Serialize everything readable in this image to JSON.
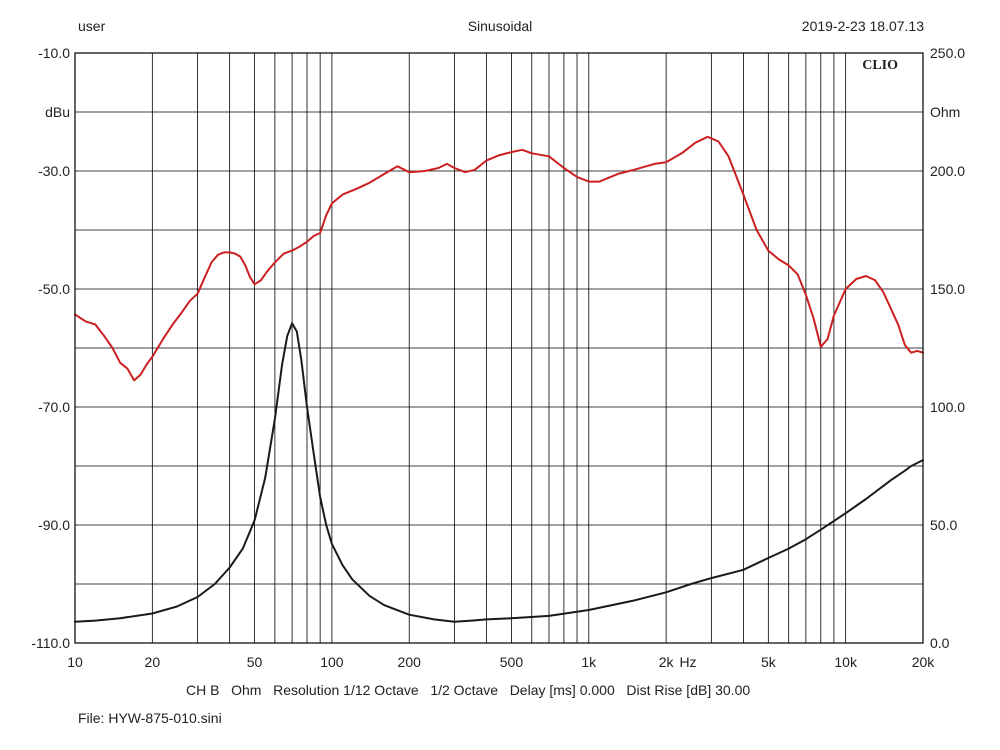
{
  "header": {
    "left": "user",
    "center": "Sinusoidal",
    "right": "2019-2-23 18.07.13"
  },
  "brand": "CLIO",
  "footer": {
    "settings": "CH B   Ohm   Resolution 1/12 Octave   1/2 Octave   Delay [ms] 0.000   Dist Rise [dB] 30.00",
    "file": "File: HYW-875-010.sini"
  },
  "chart_data": {
    "type": "line",
    "xscale": "log",
    "xlim": [
      10,
      20000
    ],
    "x_tick_labels": [
      {
        "value": 10,
        "label": "10"
      },
      {
        "value": 20,
        "label": "20"
      },
      {
        "value": 50,
        "label": "50"
      },
      {
        "value": 100,
        "label": "100"
      },
      {
        "value": 200,
        "label": "200"
      },
      {
        "value": 500,
        "label": "500"
      },
      {
        "value": 1000,
        "label": "1k"
      },
      {
        "value": 2000,
        "label": "2k"
      },
      {
        "value": 5000,
        "label": "5k"
      },
      {
        "value": 10000,
        "label": "10k"
      },
      {
        "value": 20000,
        "label": "20k"
      }
    ],
    "xlabel": "Hz",
    "y_left": {
      "label": "dBu",
      "lim": [
        -110,
        -10
      ],
      "tick_labels": [
        {
          "value": -10,
          "label": "-10.0"
        },
        {
          "value": -30,
          "label": "-30.0"
        },
        {
          "value": -50,
          "label": "-50.0"
        },
        {
          "value": -70,
          "label": "-70.0"
        },
        {
          "value": -90,
          "label": "-90.0"
        },
        {
          "value": -110,
          "label": "-110.0"
        }
      ]
    },
    "y_right": {
      "label": "Ohm",
      "lim": [
        0,
        250
      ],
      "tick_labels": [
        {
          "value": 250,
          "label": "250.0"
        },
        {
          "value": 200,
          "label": "200.0"
        },
        {
          "value": 150,
          "label": "150.0"
        },
        {
          "value": 100,
          "label": "100.0"
        },
        {
          "value": 50,
          "label": "50.0"
        },
        {
          "value": 0,
          "label": "0.0"
        }
      ]
    },
    "grid": true,
    "series": [
      {
        "axis": "left",
        "color": "#cc2020",
        "points": [
          [
            10,
            -54.3
          ],
          [
            11,
            -55.5
          ],
          [
            12,
            -56.0
          ],
          [
            13,
            -58.0
          ],
          [
            14,
            -60.0
          ],
          [
            15,
            -62.5
          ],
          [
            16,
            -63.5
          ],
          [
            17,
            -65.5
          ],
          [
            18,
            -64.5
          ],
          [
            19,
            -62.8
          ],
          [
            20,
            -61.5
          ],
          [
            22,
            -58.5
          ],
          [
            24,
            -56.0
          ],
          [
            26,
            -54.0
          ],
          [
            28,
            -52.0
          ],
          [
            30,
            -50.8
          ],
          [
            32,
            -48.0
          ],
          [
            34,
            -45.5
          ],
          [
            36,
            -44.2
          ],
          [
            38,
            -43.8
          ],
          [
            40,
            -43.8
          ],
          [
            42,
            -44.0
          ],
          [
            44,
            -44.5
          ],
          [
            46,
            -46.0
          ],
          [
            48,
            -48.0
          ],
          [
            50,
            -49.2
          ],
          [
            53,
            -48.5
          ],
          [
            56,
            -47.0
          ],
          [
            60,
            -45.5
          ],
          [
            65,
            -44.0
          ],
          [
            70,
            -43.5
          ],
          [
            75,
            -42.8
          ],
          [
            80,
            -42.0
          ],
          [
            85,
            -41.0
          ],
          [
            90,
            -40.5
          ],
          [
            95,
            -37.5
          ],
          [
            100,
            -35.5
          ],
          [
            110,
            -34.0
          ],
          [
            125,
            -33.0
          ],
          [
            140,
            -32.0
          ],
          [
            160,
            -30.5
          ],
          [
            180,
            -29.2
          ],
          [
            200,
            -30.2
          ],
          [
            230,
            -30.0
          ],
          [
            260,
            -29.5
          ],
          [
            280,
            -28.8
          ],
          [
            300,
            -29.5
          ],
          [
            330,
            -30.2
          ],
          [
            360,
            -29.8
          ],
          [
            400,
            -28.2
          ],
          [
            450,
            -27.3
          ],
          [
            500,
            -26.8
          ],
          [
            550,
            -26.4
          ],
          [
            600,
            -27.0
          ],
          [
            700,
            -27.5
          ],
          [
            800,
            -29.5
          ],
          [
            900,
            -31.0
          ],
          [
            1000,
            -31.8
          ],
          [
            1100,
            -31.8
          ],
          [
            1300,
            -30.5
          ],
          [
            1500,
            -29.8
          ],
          [
            1800,
            -28.8
          ],
          [
            2000,
            -28.5
          ],
          [
            2300,
            -27.0
          ],
          [
            2600,
            -25.2
          ],
          [
            2900,
            -24.2
          ],
          [
            3200,
            -25.0
          ],
          [
            3500,
            -27.5
          ],
          [
            4000,
            -34.0
          ],
          [
            4500,
            -40.0
          ],
          [
            5000,
            -43.5
          ],
          [
            5500,
            -45.0
          ],
          [
            6000,
            -46.0
          ],
          [
            6500,
            -47.5
          ],
          [
            7000,
            -51.0
          ],
          [
            7500,
            -55.0
          ],
          [
            8000,
            -59.8
          ],
          [
            8500,
            -58.5
          ],
          [
            9000,
            -54.5
          ],
          [
            10000,
            -50.0
          ],
          [
            11000,
            -48.3
          ],
          [
            12000,
            -47.8
          ],
          [
            13000,
            -48.5
          ],
          [
            14000,
            -50.5
          ],
          [
            16000,
            -56.0
          ],
          [
            17000,
            -59.5
          ],
          [
            18000,
            -60.8
          ],
          [
            19000,
            -60.5
          ],
          [
            20000,
            -60.8
          ]
        ]
      },
      {
        "axis": "right",
        "color": "#1a1a1a",
        "points": [
          [
            10,
            9.0
          ],
          [
            12,
            9.5
          ],
          [
            15,
            10.5
          ],
          [
            20,
            12.5
          ],
          [
            25,
            15.5
          ],
          [
            30,
            19.5
          ],
          [
            35,
            25.0
          ],
          [
            40,
            32.0
          ],
          [
            45,
            40.0
          ],
          [
            50,
            52.0
          ],
          [
            55,
            70.0
          ],
          [
            60,
            95.0
          ],
          [
            64,
            118.0
          ],
          [
            67,
            130.0
          ],
          [
            70,
            135.5
          ],
          [
            73,
            132.0
          ],
          [
            76,
            120.0
          ],
          [
            80,
            100.0
          ],
          [
            85,
            80.0
          ],
          [
            90,
            62.0
          ],
          [
            95,
            50.0
          ],
          [
            100,
            42.0
          ],
          [
            110,
            33.0
          ],
          [
            120,
            27.0
          ],
          [
            140,
            20.0
          ],
          [
            160,
            16.0
          ],
          [
            200,
            12.0
          ],
          [
            250,
            10.0
          ],
          [
            300,
            9.0
          ],
          [
            350,
            9.5
          ],
          [
            400,
            10.0
          ],
          [
            500,
            10.5
          ],
          [
            700,
            11.5
          ],
          [
            1000,
            14.0
          ],
          [
            1500,
            18.0
          ],
          [
            2000,
            21.5
          ],
          [
            2500,
            25.0
          ],
          [
            3000,
            27.5
          ],
          [
            4000,
            31.0
          ],
          [
            5000,
            36.0
          ],
          [
            6000,
            40.0
          ],
          [
            7000,
            44.0
          ],
          [
            8000,
            48.0
          ],
          [
            10000,
            55.0
          ],
          [
            12000,
            61.0
          ],
          [
            15000,
            69.0
          ],
          [
            17000,
            73.0
          ],
          [
            18000,
            75.0
          ],
          [
            20000,
            77.5
          ]
        ]
      }
    ]
  }
}
